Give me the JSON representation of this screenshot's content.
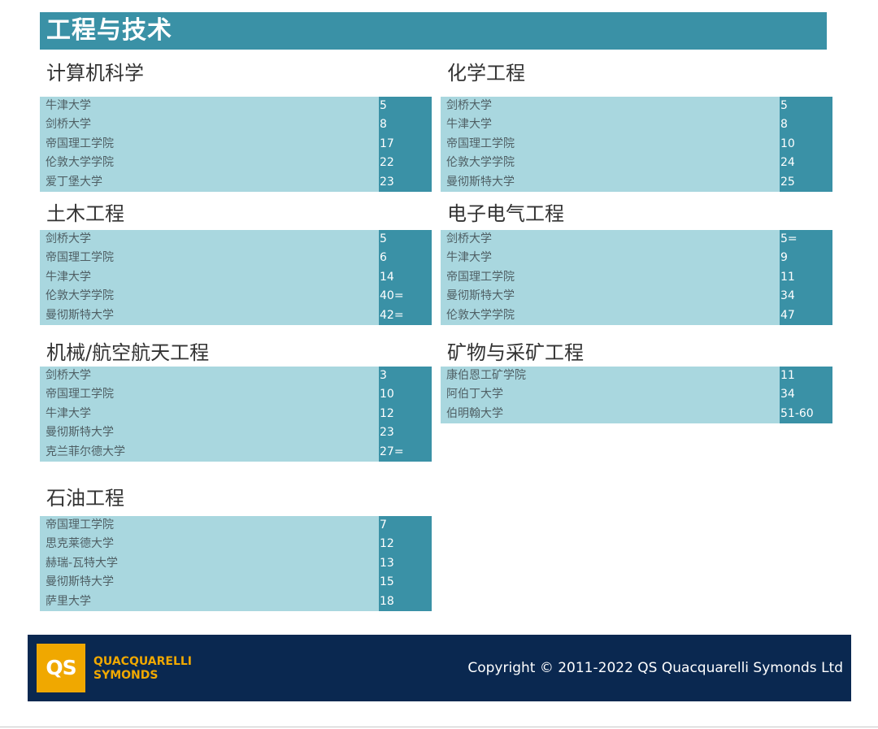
{
  "header": {
    "title": "工程与技术"
  },
  "sections": [
    {
      "title": "计算机科学",
      "rows": [
        {
          "university": "牛津大学",
          "rank": "5"
        },
        {
          "university": "剑桥大学",
          "rank": "8"
        },
        {
          "university": "帝国理工学院",
          "rank": "17"
        },
        {
          "university": "伦敦大学学院",
          "rank": "22"
        },
        {
          "university": "爱丁堡大学",
          "rank": "23"
        }
      ]
    },
    {
      "title": "化学工程",
      "rows": [
        {
          "university": "剑桥大学",
          "rank": "5"
        },
        {
          "university": "牛津大学",
          "rank": "8"
        },
        {
          "university": "帝国理工学院",
          "rank": "10"
        },
        {
          "university": "伦敦大学学院",
          "rank": "24"
        },
        {
          "university": "曼彻斯特大学",
          "rank": "25"
        }
      ]
    },
    {
      "title": "土木工程",
      "rows": [
        {
          "university": "剑桥大学",
          "rank": "5"
        },
        {
          "university": "帝国理工学院",
          "rank": "6"
        },
        {
          "university": "牛津大学",
          "rank": "14"
        },
        {
          "university": "伦敦大学学院",
          "rank": "40="
        },
        {
          "university": "曼彻斯特大学",
          "rank": "42="
        }
      ]
    },
    {
      "title": "电子电气工程",
      "rows": [
        {
          "university": "剑桥大学",
          "rank": "5="
        },
        {
          "university": "牛津大学",
          "rank": "9"
        },
        {
          "university": "帝国理工学院",
          "rank": "11"
        },
        {
          "university": "曼彻斯特大学",
          "rank": "34"
        },
        {
          "university": "伦敦大学学院",
          "rank": "47"
        }
      ]
    },
    {
      "title": "机械/航空航天工程",
      "rows": [
        {
          "university": "剑桥大学",
          "rank": "3"
        },
        {
          "university": "帝国理工学院",
          "rank": "10"
        },
        {
          "university": "牛津大学",
          "rank": "12"
        },
        {
          "university": "曼彻斯特大学",
          "rank": "23"
        },
        {
          "university": "克兰菲尔德大学",
          "rank": "27="
        }
      ]
    },
    {
      "title": "矿物与采矿工程",
      "rows": [
        {
          "university": "康伯恩工矿学院",
          "rank": "11"
        },
        {
          "university": "阿伯丁大学",
          "rank": "34"
        },
        {
          "university": "伯明翰大学",
          "rank": "51-60"
        }
      ]
    },
    {
      "title": "石油工程",
      "rows": [
        {
          "university": "帝国理工学院",
          "rank": "7"
        },
        {
          "university": "思克莱德大学",
          "rank": "12"
        },
        {
          "university": "赫瑞-瓦特大学",
          "rank": "13"
        },
        {
          "university": "曼彻斯特大学",
          "rank": "15"
        },
        {
          "university": "萨里大学",
          "rank": "18"
        }
      ]
    }
  ],
  "footer": {
    "logo_text": "QS",
    "brand_line1": "QUACQUARELLI",
    "brand_line2": "SYMONDS",
    "copyright": "Copyright © 2011-2022 QS Quacquarelli Symonds Ltd"
  },
  "colors": {
    "header_bg": "#3a91a6",
    "row_bg": "#a9d7df",
    "rank_bg": "#3a91a6",
    "footer_bg": "#0a2850",
    "logo_bg": "#f0a800"
  }
}
